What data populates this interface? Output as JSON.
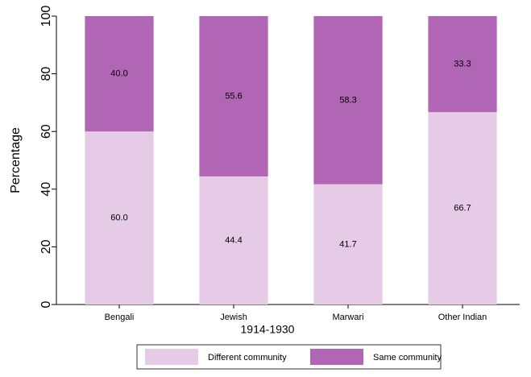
{
  "chart_data": {
    "type": "stacked_bar",
    "xlabel": "1914-1930",
    "ylabel": "Percentage",
    "categories": [
      "Bengali",
      "Jewish",
      "Marwari",
      "Other Indian"
    ],
    "series": [
      {
        "name": "Different community",
        "color": "#e6cbe6",
        "values": [
          60.0,
          44.4,
          41.7,
          66.7
        ],
        "value_labels": [
          "60.0",
          "44.4",
          "41.7",
          "66.7"
        ]
      },
      {
        "name": "Same community",
        "color": "#b165b5",
        "values": [
          40.0,
          55.6,
          58.3,
          33.3
        ],
        "value_labels": [
          "40.0",
          "55.6",
          "58.3",
          "33.3"
        ]
      }
    ],
    "ylim": [
      0,
      100
    ],
    "yticks": [
      0,
      20,
      40,
      60,
      80,
      100
    ],
    "grid": false,
    "legend": "bottom"
  }
}
